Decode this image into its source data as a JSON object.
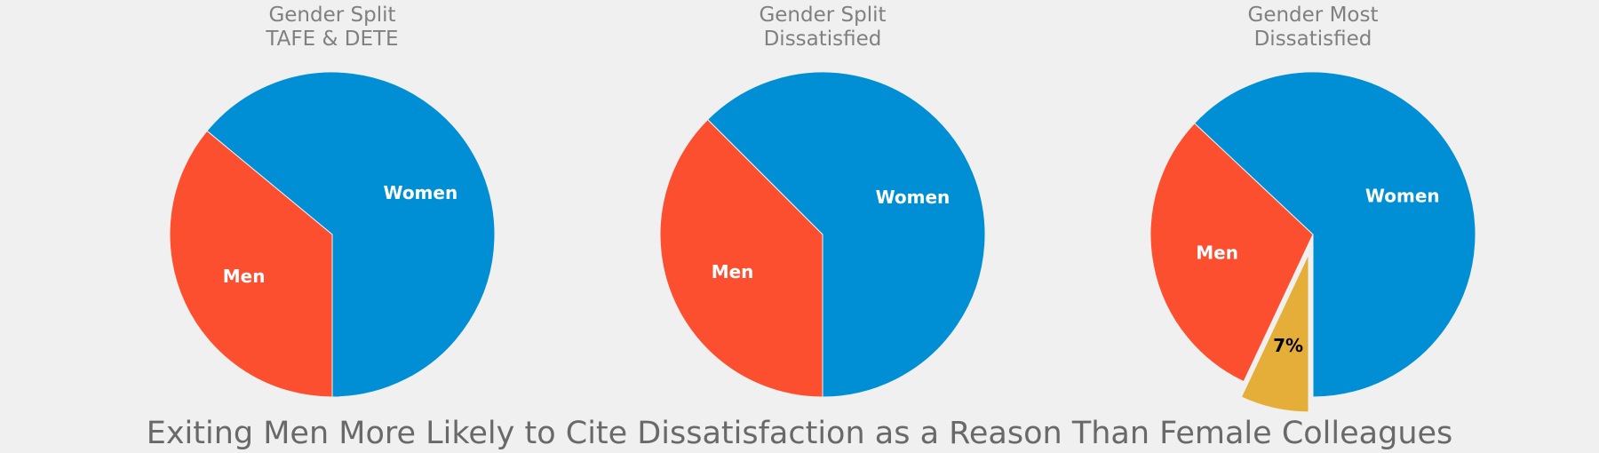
{
  "suptitle": "Exiting Men More Likely to Cite Dissatisfaction as a Reason Than Female Colleagues",
  "colors": {
    "women": "#008fd5",
    "men": "#fc4f30",
    "other": "#e5ae38",
    "background": "#f0f0f0"
  },
  "chart_data": [
    {
      "type": "pie",
      "title": [
        "Gender Split",
        "TAFE & DETE"
      ],
      "slices": [
        {
          "label": "Women",
          "value": 64,
          "color": "#008fd5",
          "label_color": "#ffffff"
        },
        {
          "label": "Men",
          "value": 36,
          "color": "#fc4f30",
          "label_color": "#ffffff"
        }
      ]
    },
    {
      "type": "pie",
      "title": [
        "Gender Split",
        "Dissatisfied"
      ],
      "slices": [
        {
          "label": "Women",
          "value": 62.5,
          "color": "#008fd5",
          "label_color": "#ffffff"
        },
        {
          "label": "Men",
          "value": 37.5,
          "color": "#fc4f30",
          "label_color": "#ffffff"
        }
      ]
    },
    {
      "type": "pie",
      "title": [
        "Gender Most",
        "Dissatisfied"
      ],
      "slices": [
        {
          "label": "Women",
          "value": 63,
          "color": "#008fd5",
          "label_color": "#ffffff"
        },
        {
          "label": "Men",
          "value": 30,
          "color": "#fc4f30",
          "label_color": "#ffffff"
        },
        {
          "label": "7%",
          "value": 7,
          "color": "#e5ae38",
          "label_color": "#000000",
          "exploded": true
        }
      ]
    }
  ]
}
